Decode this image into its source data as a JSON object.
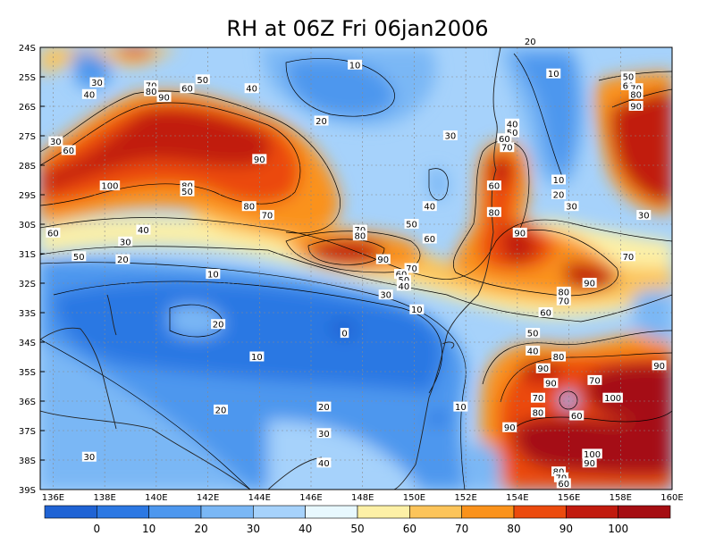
{
  "title": "RH at 06Z Fri 06jan2006",
  "map": {
    "x_labels": [
      "136E",
      "138E",
      "140E",
      "142E",
      "144E",
      "146E",
      "148E",
      "150E",
      "152E",
      "154E",
      "156E",
      "158E",
      "160E"
    ],
    "y_labels": [
      "24S",
      "25S",
      "26S",
      "27S",
      "28S",
      "29S",
      "30S",
      "31S",
      "32S",
      "33S",
      "34S",
      "35S",
      "36S",
      "37S",
      "38S",
      "39S"
    ],
    "lon_range": [
      135.5,
      160
    ],
    "lat_range": [
      -24,
      -39
    ],
    "contour_labels": [
      {
        "text": "20",
        "lon": 154.5,
        "lat": -23.8
      },
      {
        "text": "10",
        "lon": 147.7,
        "lat": -24.6
      },
      {
        "text": "10",
        "lon": 155.4,
        "lat": -24.9
      },
      {
        "text": "30",
        "lon": 137.7,
        "lat": -25.2
      },
      {
        "text": "40",
        "lon": 137.4,
        "lat": -25.6
      },
      {
        "text": "70",
        "lon": 139.8,
        "lat": -25.3
      },
      {
        "text": "80",
        "lon": 139.8,
        "lat": -25.5
      },
      {
        "text": "90",
        "lon": 140.3,
        "lat": -25.7
      },
      {
        "text": "50",
        "lon": 141.8,
        "lat": -25.1
      },
      {
        "text": "60",
        "lon": 141.2,
        "lat": -25.4
      },
      {
        "text": "40",
        "lon": 143.7,
        "lat": -25.4
      },
      {
        "text": "50",
        "lon": 158.3,
        "lat": -25.0
      },
      {
        "text": "60",
        "lon": 158.3,
        "lat": -25.3
      },
      {
        "text": "70",
        "lon": 158.6,
        "lat": -25.4
      },
      {
        "text": "80",
        "lon": 158.6,
        "lat": -25.6
      },
      {
        "text": "90",
        "lon": 158.6,
        "lat": -26.0
      },
      {
        "text": "20",
        "lon": 146.4,
        "lat": -26.5
      },
      {
        "text": "40",
        "lon": 153.8,
        "lat": -26.6
      },
      {
        "text": "50",
        "lon": 153.8,
        "lat": -26.9
      },
      {
        "text": "60",
        "lon": 153.5,
        "lat": -27.1
      },
      {
        "text": "70",
        "lon": 153.6,
        "lat": -27.4
      },
      {
        "text": "30",
        "lon": 151.4,
        "lat": -27.0
      },
      {
        "text": "30",
        "lon": 136.1,
        "lat": -27.2
      },
      {
        "text": "60",
        "lon": 136.6,
        "lat": -27.5
      },
      {
        "text": "90",
        "lon": 144.0,
        "lat": -27.8
      },
      {
        "text": "10",
        "lon": 155.6,
        "lat": -28.5
      },
      {
        "text": "80",
        "lon": 141.2,
        "lat": -28.7
      },
      {
        "text": "50",
        "lon": 141.2,
        "lat": -28.9
      },
      {
        "text": "100",
        "lon": 138.2,
        "lat": -28.7
      },
      {
        "text": "60",
        "lon": 153.1,
        "lat": -28.7
      },
      {
        "text": "20",
        "lon": 155.6,
        "lat": -29.0
      },
      {
        "text": "30",
        "lon": 156.1,
        "lat": -29.4
      },
      {
        "text": "80",
        "lon": 143.6,
        "lat": -29.4
      },
      {
        "text": "40",
        "lon": 150.6,
        "lat": -29.4
      },
      {
        "text": "70",
        "lon": 144.3,
        "lat": -29.7
      },
      {
        "text": "80",
        "lon": 153.1,
        "lat": -29.6
      },
      {
        "text": "30",
        "lon": 158.9,
        "lat": -29.7
      },
      {
        "text": "50",
        "lon": 149.9,
        "lat": -30.0
      },
      {
        "text": "40",
        "lon": 139.5,
        "lat": -30.2
      },
      {
        "text": "60",
        "lon": 136.0,
        "lat": -30.3
      },
      {
        "text": "70",
        "lon": 147.9,
        "lat": -30.2
      },
      {
        "text": "80",
        "lon": 147.9,
        "lat": -30.4
      },
      {
        "text": "90",
        "lon": 154.1,
        "lat": -30.3
      },
      {
        "text": "60",
        "lon": 150.6,
        "lat": -30.5
      },
      {
        "text": "30",
        "lon": 138.8,
        "lat": -30.6
      },
      {
        "text": "50",
        "lon": 137.0,
        "lat": -31.1
      },
      {
        "text": "20",
        "lon": 138.7,
        "lat": -31.2
      },
      {
        "text": "90",
        "lon": 148.8,
        "lat": -31.2
      },
      {
        "text": "70",
        "lon": 158.3,
        "lat": -31.1
      },
      {
        "text": "70",
        "lon": 149.9,
        "lat": -31.5
      },
      {
        "text": "60",
        "lon": 149.5,
        "lat": -31.7
      },
      {
        "text": "50",
        "lon": 149.6,
        "lat": -31.9
      },
      {
        "text": "40",
        "lon": 149.6,
        "lat": -32.1
      },
      {
        "text": "10",
        "lon": 142.2,
        "lat": -31.7
      },
      {
        "text": "90",
        "lon": 156.8,
        "lat": -32.0
      },
      {
        "text": "30",
        "lon": 148.9,
        "lat": -32.4
      },
      {
        "text": "80",
        "lon": 155.8,
        "lat": -32.3
      },
      {
        "text": "70",
        "lon": 155.8,
        "lat": -32.6
      },
      {
        "text": "10",
        "lon": 150.1,
        "lat": -32.9
      },
      {
        "text": "60",
        "lon": 155.1,
        "lat": -33.0
      },
      {
        "text": "20",
        "lon": 142.4,
        "lat": -33.4
      },
      {
        "text": "0",
        "lon": 147.3,
        "lat": -33.7
      },
      {
        "text": "50",
        "lon": 154.6,
        "lat": -33.7
      },
      {
        "text": "40",
        "lon": 154.6,
        "lat": -34.3
      },
      {
        "text": "10",
        "lon": 143.9,
        "lat": -34.5
      },
      {
        "text": "80",
        "lon": 155.6,
        "lat": -34.5
      },
      {
        "text": "90",
        "lon": 155.0,
        "lat": -34.9
      },
      {
        "text": "90",
        "lon": 159.5,
        "lat": -34.8
      },
      {
        "text": "70",
        "lon": 157.0,
        "lat": -35.3
      },
      {
        "text": "90",
        "lon": 155.3,
        "lat": -35.4
      },
      {
        "text": "70",
        "lon": 154.8,
        "lat": -35.9
      },
      {
        "text": "100",
        "lon": 157.7,
        "lat": -35.9
      },
      {
        "text": "80",
        "lon": 154.8,
        "lat": -36.4
      },
      {
        "text": "60",
        "lon": 156.3,
        "lat": -36.5
      },
      {
        "text": "20",
        "lon": 146.5,
        "lat": -36.2
      },
      {
        "text": "10",
        "lon": 151.8,
        "lat": -36.2
      },
      {
        "text": "20",
        "lon": 142.5,
        "lat": -36.3
      },
      {
        "text": "90",
        "lon": 153.7,
        "lat": -36.9
      },
      {
        "text": "30",
        "lon": 146.5,
        "lat": -37.1
      },
      {
        "text": "30",
        "lon": 137.4,
        "lat": -37.9
      },
      {
        "text": "100",
        "lon": 156.9,
        "lat": -37.8
      },
      {
        "text": "90",
        "lon": 156.8,
        "lat": -38.1
      },
      {
        "text": "40",
        "lon": 146.5,
        "lat": -38.1
      },
      {
        "text": "80",
        "lon": 155.6,
        "lat": -38.4
      },
      {
        "text": "70",
        "lon": 155.7,
        "lat": -38.6
      },
      {
        "text": "60",
        "lon": 155.8,
        "lat": -38.8
      }
    ]
  },
  "colorbar": {
    "levels": [
      "0",
      "10",
      "20",
      "30",
      "40",
      "50",
      "60",
      "70",
      "80",
      "90",
      "100"
    ],
    "colors": [
      "#1f63d4",
      "#2c78e3",
      "#4d97ee",
      "#7ab7f5",
      "#a6d2fb",
      "#e8f8fe",
      "#fdf0a6",
      "#fcc45a",
      "#fa921b",
      "#eb4a0d",
      "#c11a0e",
      "#a50d12"
    ]
  }
}
